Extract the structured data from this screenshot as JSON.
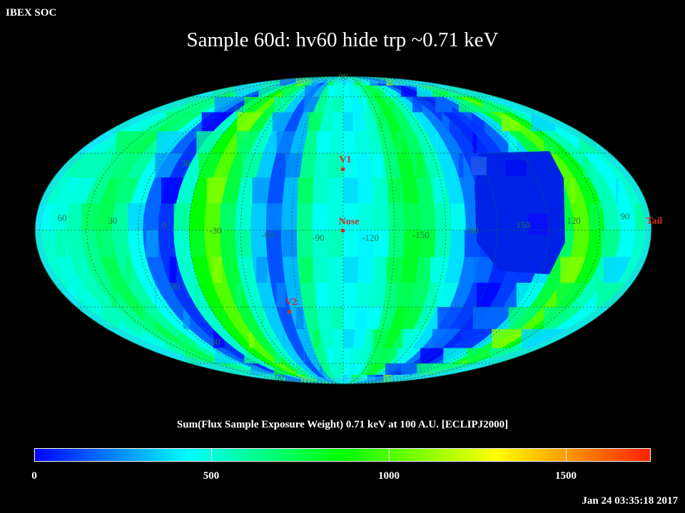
{
  "header": {
    "organization": "IBEX SOC",
    "title": "Sample 60d: hv60 hide trp ~0.71 keV"
  },
  "map": {
    "projection": "Aitoff (ecliptic, full sky)",
    "grid_labels": {
      "lat_upper_90": "90",
      "lat_upper_60": "60",
      "lat_upper_30": "30",
      "lat_lower_30": "30",
      "lat_lower_60": "60",
      "lat_lower_90": "90",
      "lon": [
        "60",
        "30",
        "0",
        "-30",
        "-60",
        "-90",
        "-120",
        "-150",
        "180",
        "150",
        "120",
        "90"
      ]
    },
    "markers": {
      "v1": "V1",
      "v2": "V2",
      "nose": "Nose",
      "tail": "Tail"
    },
    "marker_color": "#d03020",
    "grid_color": "#1a6a3a"
  },
  "colorbar": {
    "title": "Sum(Flux Sample Exposure Weight)  0.71 keV at 100 A.U. [ECLIPJ2000]",
    "min": 0,
    "max": 1750,
    "tick_labels": [
      "0",
      "500",
      "1000",
      "1500"
    ],
    "colors": [
      "#0000ff",
      "#00ffff",
      "#00ff00",
      "#ffff00",
      "#ff2000"
    ]
  },
  "footer": {
    "timestamp": "Jan 24 03:35:18 2017"
  }
}
